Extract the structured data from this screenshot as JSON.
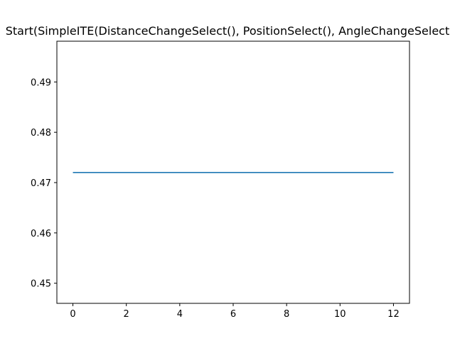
{
  "chart_data": {
    "type": "line",
    "title": "Start(SimpleITE(DistanceChangeSelect(), PositionSelect(), AngleChangeSelect",
    "xlabel": "",
    "ylabel": "",
    "xlim": [
      -0.6,
      12.6
    ],
    "ylim": [
      0.446,
      0.4981
    ],
    "grid": false,
    "xticks": [
      0,
      2,
      4,
      6,
      8,
      10,
      12
    ],
    "xtick_labels": [
      "0",
      "2",
      "4",
      "6",
      "8",
      "10",
      "12"
    ],
    "yticks": [
      0.45,
      0.46,
      0.47,
      0.48,
      0.49
    ],
    "ytick_labels": [
      "0.45",
      "0.46",
      "0.47",
      "0.48",
      "0.49"
    ],
    "series": [
      {
        "name": "series-1",
        "color": "#1f77b4",
        "x": [
          0,
          1,
          2,
          3,
          4,
          5,
          6,
          7,
          8,
          9,
          10,
          11,
          12
        ],
        "y": [
          0.472,
          0.472,
          0.472,
          0.472,
          0.472,
          0.472,
          0.472,
          0.472,
          0.472,
          0.472,
          0.472,
          0.472,
          0.472
        ]
      }
    ]
  }
}
